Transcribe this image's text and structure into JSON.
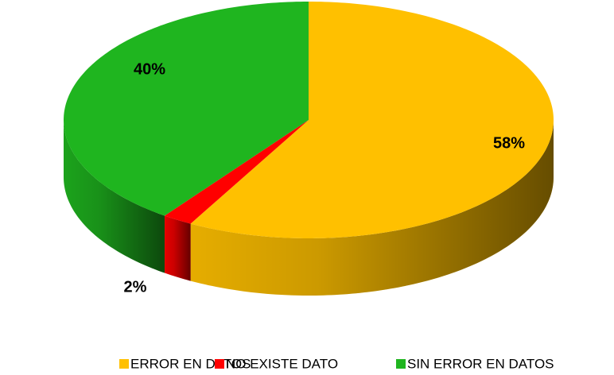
{
  "chart_data": {
    "type": "pie3d",
    "categories": [
      "ERROR EN DATOS",
      "NO EXISTE DATO",
      "SIN ERROR EN DATOS"
    ],
    "values": [
      58,
      2,
      40
    ],
    "value_labels": [
      "58%",
      "2%",
      "40%"
    ],
    "colors": [
      "#FFC000",
      "#FF0000",
      "#1FB51F"
    ],
    "legend": "bottom"
  }
}
